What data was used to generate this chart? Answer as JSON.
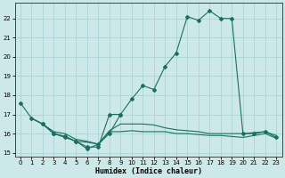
{
  "xlabel": "Humidex (Indice chaleur)",
  "bg_color": "#cce8e8",
  "grid_color": "#aad4d4",
  "line_color": "#1a7060",
  "xlim": [
    -0.5,
    23.5
  ],
  "ylim": [
    14.8,
    22.8
  ],
  "yticks": [
    15,
    16,
    17,
    18,
    19,
    20,
    21,
    22
  ],
  "xticks": [
    0,
    1,
    2,
    3,
    4,
    5,
    6,
    7,
    8,
    9,
    10,
    11,
    12,
    13,
    14,
    15,
    16,
    17,
    18,
    19,
    20,
    21,
    22,
    23
  ],
  "line1_x": [
    0,
    1,
    2,
    3,
    4,
    5,
    6,
    7,
    8,
    9,
    10,
    11,
    12,
    13,
    14,
    15,
    16,
    17,
    18,
    19,
    20,
    21,
    22,
    23
  ],
  "line1_y": [
    17.6,
    16.8,
    16.5,
    16.0,
    15.8,
    15.6,
    15.3,
    15.3,
    17.0,
    17.0,
    17.8,
    18.5,
    18.3,
    19.5,
    20.2,
    22.1,
    21.9,
    22.4,
    22.0,
    22.0,
    16.0,
    16.0,
    16.1,
    15.8
  ],
  "line2_x": [
    1,
    2,
    3,
    4,
    5,
    6,
    7,
    8,
    9,
    10,
    11,
    12,
    13,
    14,
    15,
    16,
    17,
    18,
    19,
    20,
    21,
    22,
    23
  ],
  "line2_y": [
    16.8,
    16.5,
    16.0,
    15.85,
    15.6,
    15.55,
    15.45,
    16.1,
    16.1,
    16.15,
    16.1,
    16.1,
    16.1,
    16.0,
    16.0,
    15.95,
    15.9,
    15.9,
    15.85,
    15.8,
    15.9,
    16.0,
    15.75
  ],
  "line3_x": [
    1,
    2,
    3,
    4,
    5,
    6,
    7,
    8,
    9,
    10,
    11,
    12,
    13,
    14,
    15,
    16,
    17,
    18,
    19,
    20,
    21,
    22,
    23
  ],
  "line3_y": [
    16.8,
    16.5,
    16.1,
    16.0,
    15.7,
    15.6,
    15.45,
    16.15,
    16.5,
    16.5,
    16.5,
    16.45,
    16.3,
    16.2,
    16.15,
    16.1,
    16.0,
    16.0,
    16.0,
    16.0,
    16.05,
    16.1,
    15.9
  ],
  "line4_x": [
    2,
    3,
    4,
    5,
    6,
    7,
    8,
    9
  ],
  "line4_y": [
    16.5,
    16.0,
    15.85,
    15.6,
    15.2,
    15.45,
    16.0,
    17.0
  ]
}
